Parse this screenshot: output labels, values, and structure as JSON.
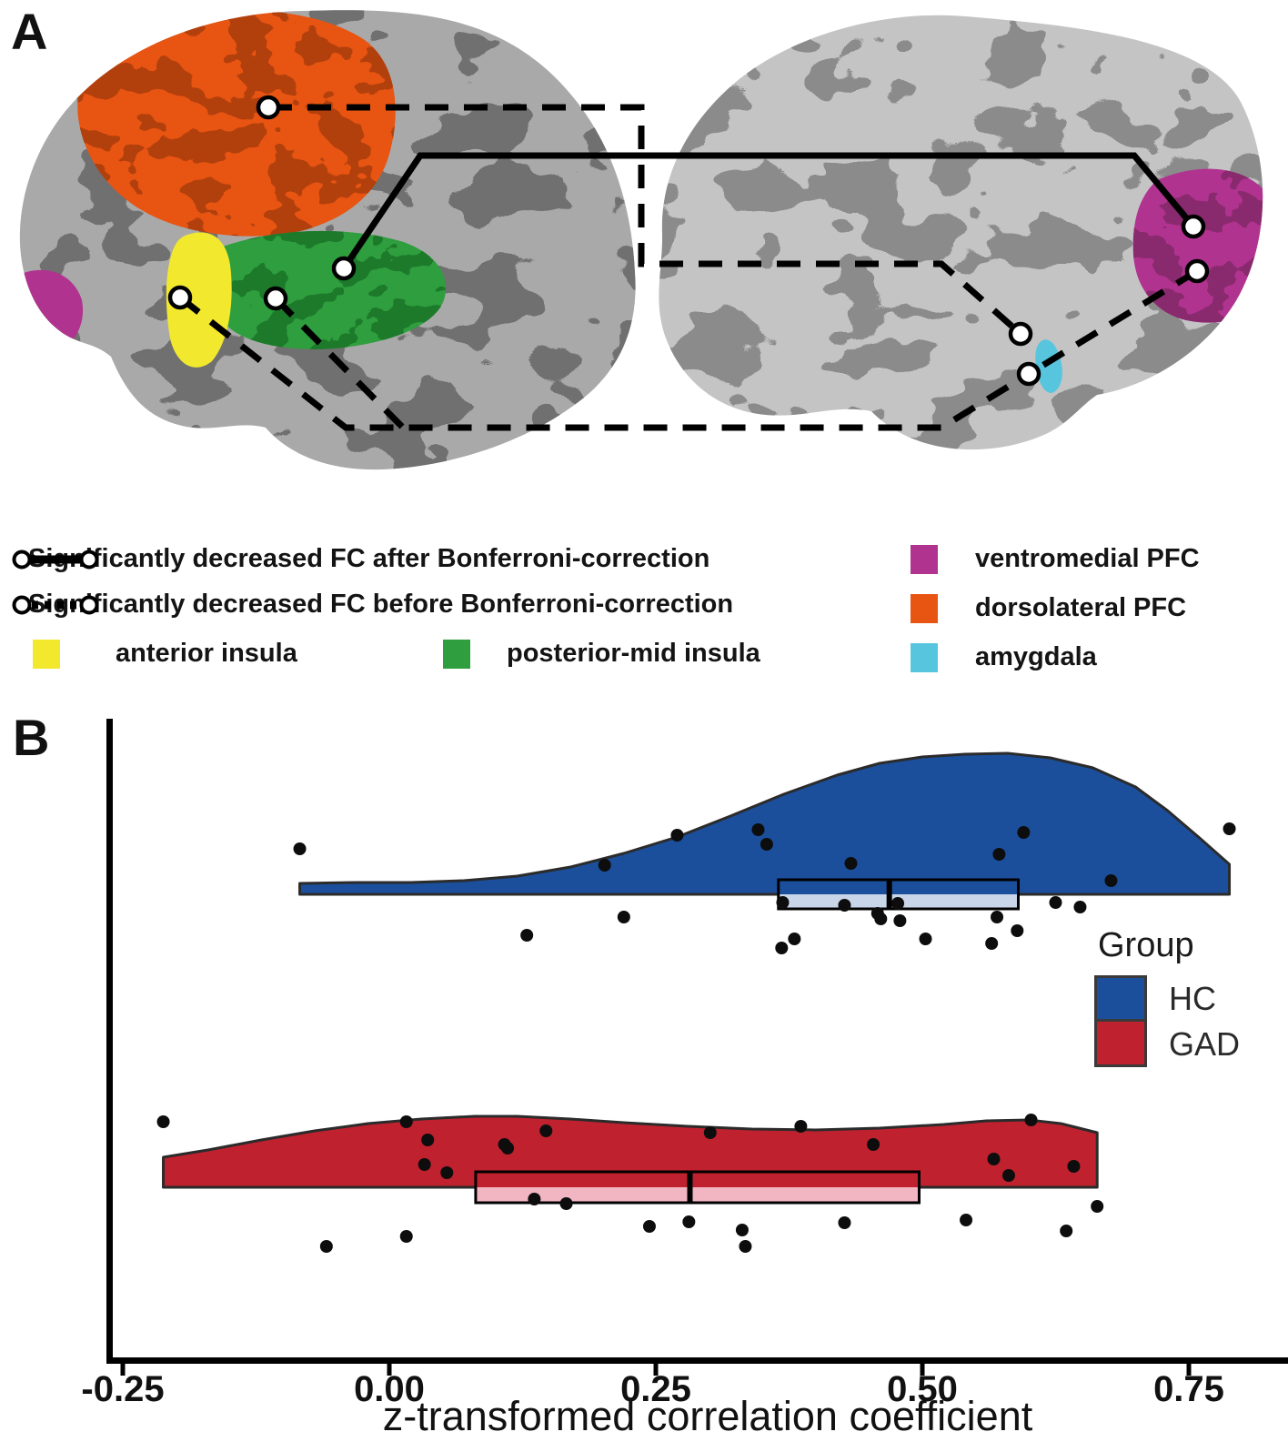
{
  "figure": {
    "panel_a_label": "A",
    "panel_b_label": "B"
  },
  "panel_a": {
    "description": "Two inflated brain surfaces (left lateral view, right medial view) with ROI seeds connected by solid and dashed functional-connectivity lines",
    "legend": {
      "solid_line_label": "Significantly decreased FC after Bonferroni-correction",
      "dashed_line_label": "Significantly decreased FC before Bonferroni-correction"
    },
    "regions": {
      "anterior_insula": {
        "label": "anterior insula",
        "color": "#f2e82d"
      },
      "posterior_mid_insula": {
        "label": "posterior-mid insula",
        "color": "#2e9e3e"
      },
      "ventromedial_pfc": {
        "label": "ventromedial PFC",
        "color": "#b13390"
      },
      "dorsolateral_pfc": {
        "label": "dorsolateral PFC",
        "color": "#e85411"
      },
      "amygdala": {
        "label": "amygdala",
        "color": "#58c5de"
      }
    }
  },
  "chart_data": {
    "type": "raincloud (half-violin + boxplot + jittered points)",
    "xlabel": "z-transformed correlation coefficient",
    "x_ticks": [
      -0.25,
      0.0,
      0.25,
      0.5,
      0.75
    ],
    "xlim": [
      -0.27,
      0.84
    ],
    "grid": false,
    "legend": {
      "title": "Group",
      "position": "right-middle",
      "entries": [
        {
          "label": "HC",
          "color": "#1b4f9c"
        },
        {
          "label": "GAD",
          "color": "#c0212e"
        }
      ]
    },
    "series": [
      {
        "name": "HC",
        "color": "#1b4f9c",
        "box_fill": "#c9d6ea",
        "box": {
          "q1": 0.365,
          "median": 0.469,
          "q3": 0.59
        },
        "density_profile": [
          [
            -0.084,
            12
          ],
          [
            -0.03,
            13
          ],
          [
            0.02,
            13
          ],
          [
            0.07,
            15
          ],
          [
            0.12,
            20
          ],
          [
            0.17,
            30
          ],
          [
            0.22,
            45
          ],
          [
            0.27,
            63
          ],
          [
            0.32,
            86
          ],
          [
            0.37,
            110
          ],
          [
            0.42,
            131
          ],
          [
            0.46,
            144
          ],
          [
            0.5,
            151
          ],
          [
            0.54,
            154
          ],
          [
            0.58,
            155
          ],
          [
            0.62,
            150
          ],
          [
            0.66,
            139
          ],
          [
            0.7,
            118
          ],
          [
            0.73,
            92
          ],
          [
            0.76,
            62
          ],
          [
            0.788,
            33
          ]
        ],
        "points": [
          {
            "x": -0.084,
            "dy": -50
          },
          {
            "x": 0.129,
            "dy": 45
          },
          {
            "x": 0.202,
            "dy": -32
          },
          {
            "x": 0.22,
            "dy": 25
          },
          {
            "x": 0.27,
            "dy": -65
          },
          {
            "x": 0.346,
            "dy": -71
          },
          {
            "x": 0.354,
            "dy": -55
          },
          {
            "x": 0.368,
            "dy": 59
          },
          {
            "x": 0.369,
            "dy": 9
          },
          {
            "x": 0.38,
            "dy": 49
          },
          {
            "x": 0.427,
            "dy": 12
          },
          {
            "x": 0.433,
            "dy": -34
          },
          {
            "x": 0.458,
            "dy": 21
          },
          {
            "x": 0.461,
            "dy": 27
          },
          {
            "x": 0.477,
            "dy": 10
          },
          {
            "x": 0.479,
            "dy": 29
          },
          {
            "x": 0.503,
            "dy": 49
          },
          {
            "x": 0.565,
            "dy": 54
          },
          {
            "x": 0.57,
            "dy": 25
          },
          {
            "x": 0.572,
            "dy": -44
          },
          {
            "x": 0.589,
            "dy": 40
          },
          {
            "x": 0.595,
            "dy": -68
          },
          {
            "x": 0.625,
            "dy": 9
          },
          {
            "x": 0.648,
            "dy": 14
          },
          {
            "x": 0.677,
            "dy": -15
          },
          {
            "x": 0.788,
            "dy": -72
          }
        ]
      },
      {
        "name": "GAD",
        "color": "#c0212e",
        "box_fill": "#f2b6c3",
        "box": {
          "q1": 0.081,
          "median": 0.282,
          "q3": 0.497
        },
        "density_profile": [
          [
            -0.212,
            33
          ],
          [
            -0.17,
            41
          ],
          [
            -0.12,
            52
          ],
          [
            -0.07,
            62
          ],
          [
            -0.02,
            70
          ],
          [
            0.03,
            75
          ],
          [
            0.08,
            78
          ],
          [
            0.12,
            78
          ],
          [
            0.17,
            75
          ],
          [
            0.22,
            71
          ],
          [
            0.28,
            67
          ],
          [
            0.34,
            64
          ],
          [
            0.4,
            63
          ],
          [
            0.46,
            65
          ],
          [
            0.52,
            69
          ],
          [
            0.56,
            73
          ],
          [
            0.6,
            74
          ],
          [
            0.63,
            70
          ],
          [
            0.664,
            60
          ]
        ],
        "points": [
          {
            "x": -0.212,
            "dy": -72
          },
          {
            "x": -0.059,
            "dy": 65
          },
          {
            "x": 0.016,
            "dy": -72
          },
          {
            "x": 0.016,
            "dy": 54
          },
          {
            "x": 0.033,
            "dy": -25
          },
          {
            "x": 0.036,
            "dy": -52
          },
          {
            "x": 0.054,
            "dy": -16
          },
          {
            "x": 0.108,
            "dy": -47
          },
          {
            "x": 0.111,
            "dy": -43
          },
          {
            "x": 0.136,
            "dy": 13
          },
          {
            "x": 0.147,
            "dy": -62
          },
          {
            "x": 0.166,
            "dy": 18
          },
          {
            "x": 0.244,
            "dy": 43
          },
          {
            "x": 0.281,
            "dy": 38
          },
          {
            "x": 0.301,
            "dy": -60
          },
          {
            "x": 0.331,
            "dy": 47
          },
          {
            "x": 0.334,
            "dy": 65
          },
          {
            "x": 0.386,
            "dy": -67
          },
          {
            "x": 0.427,
            "dy": 39
          },
          {
            "x": 0.454,
            "dy": -47
          },
          {
            "x": 0.541,
            "dy": 36
          },
          {
            "x": 0.567,
            "dy": -31
          },
          {
            "x": 0.581,
            "dy": -13
          },
          {
            "x": 0.602,
            "dy": -74
          },
          {
            "x": 0.635,
            "dy": 48
          },
          {
            "x": 0.642,
            "dy": -23
          },
          {
            "x": 0.664,
            "dy": 21
          }
        ]
      }
    ]
  }
}
